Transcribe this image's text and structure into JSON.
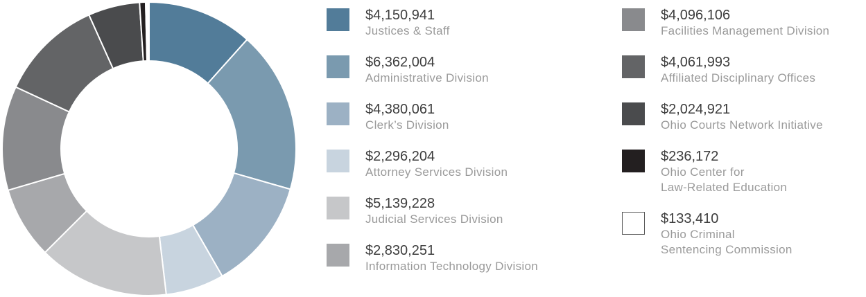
{
  "chart_data": {
    "type": "pie",
    "categories": [
      "Justices & Staff",
      "Administrative Division",
      "Clerk’s Division",
      "Attorney Services Division",
      "Judicial Services Division",
      "Information Technology Division",
      "Facilities Management Division",
      "Affiliated Disciplinary Offices",
      "Ohio Courts Network Initiative",
      "Ohio Center for\nLaw-Related Education",
      "Ohio Criminal\nSentencing Commission"
    ],
    "values": [
      4150941,
      6362004,
      4380061,
      2296204,
      5139228,
      2830251,
      4096106,
      4061993,
      2024921,
      236172,
      133410
    ],
    "value_labels": [
      "$4,150,941",
      "$6,362,004",
      "$4,380,061",
      "$2,296,204",
      "$5,139,228",
      "$2,830,251",
      "$4,096,106",
      "$4,061,993",
      "$2,024,921",
      "$236,172",
      "$133,410"
    ],
    "colors": [
      "#527c99",
      "#7a9aaf",
      "#9cb1c4",
      "#c8d4df",
      "#c6c7c9",
      "#a7a8ab",
      "#898a8d",
      "#636466",
      "#4a4b4d",
      "#231f20",
      "#ffffff"
    ]
  }
}
